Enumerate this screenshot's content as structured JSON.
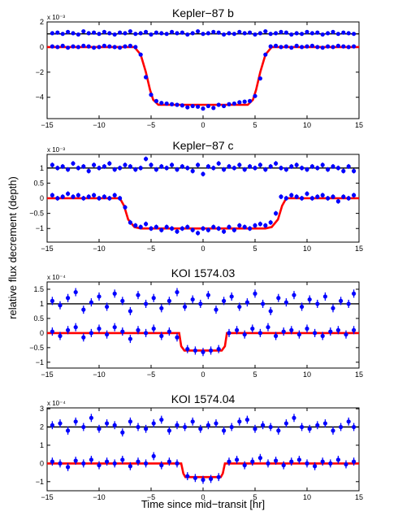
{
  "figure": {
    "ylabel": "relative flux decrement (depth)",
    "xlabel": "Time since mid−transit [hr]",
    "colors": {
      "model": "#ff0000",
      "reference": "#000000",
      "points": "#0000ff"
    }
  },
  "chart_data": [
    {
      "type": "scatter",
      "title": "Kepler−87 b",
      "multiplier": "x 10⁻³",
      "xlim": [
        -15,
        15
      ],
      "ylim": [
        -5.7,
        2
      ],
      "xticks": [
        -15,
        -10,
        -5,
        0,
        5,
        10,
        15
      ],
      "yticks": [
        -4,
        -2,
        0,
        2
      ],
      "yticklabels": [
        "−4",
        "−2",
        "0",
        "2"
      ],
      "error_bar": 0,
      "series": [
        {
          "role": "reference",
          "x": [
            -14.5,
            -14,
            -13.5,
            -13,
            -12.5,
            -12,
            -11.5,
            -11,
            -10.5,
            -10,
            -9.5,
            -9,
            -8.5,
            -8,
            -7.5,
            -7,
            -6.5,
            -6,
            -5.5,
            -5,
            -4.5,
            -4,
            -3.5,
            -3,
            -2.5,
            -2,
            -1.5,
            -1,
            -0.5,
            0,
            0.5,
            1,
            1.5,
            2,
            2.5,
            3,
            3.5,
            4,
            4.5,
            5,
            5.5,
            6,
            6.5,
            7,
            7.5,
            8,
            8.5,
            9,
            9.5,
            10,
            10.5,
            11,
            11.5,
            12,
            12.5,
            13,
            13.5,
            14,
            14.5
          ],
          "y": [
            1.1,
            1.15,
            1.05,
            1.2,
            1.1,
            1.0,
            1.25,
            1.1,
            1.15,
            1.05,
            1.2,
            1.1,
            1.0,
            1.15,
            1.1,
            1.25,
            1.05,
            1.1,
            1.2,
            1.0,
            1.15,
            1.1,
            1.05,
            1.2,
            1.1,
            1.15,
            1.0,
            1.1,
            1.25,
            1.05,
            1.1,
            1.2,
            1.15,
            1.0,
            1.1,
            1.05,
            1.2,
            1.1,
            1.15,
            1.0,
            1.1,
            1.25,
            1.05,
            1.1,
            1.2,
            1.15,
            1.0,
            1.1,
            1.05,
            1.2,
            1.1,
            1.15,
            1.0,
            1.1,
            1.2,
            1.05,
            1.15,
            1.1,
            1.05
          ]
        },
        {
          "role": "transit",
          "x": [
            -14.5,
            -14,
            -13.5,
            -13,
            -12.5,
            -12,
            -11.5,
            -11,
            -10.5,
            -10,
            -9.5,
            -9,
            -8.5,
            -8,
            -7.5,
            -7,
            -6.5,
            -6,
            -5.5,
            -5,
            -4.5,
            -4,
            -3.5,
            -3,
            -2.5,
            -2,
            -1.5,
            -1,
            -0.5,
            0,
            0.5,
            1,
            1.5,
            2,
            2.5,
            3,
            3.5,
            4,
            4.5,
            5,
            5.5,
            6,
            6.5,
            7,
            7.5,
            8,
            8.5,
            9,
            9.5,
            10,
            10.5,
            11,
            11.5,
            12,
            12.5,
            13,
            13.5,
            14,
            14.5
          ],
          "y": [
            0.05,
            0.0,
            0.1,
            -0.05,
            0.05,
            0.0,
            0.1,
            0.05,
            -0.05,
            0.0,
            0.1,
            0.05,
            0.0,
            -0.05,
            0.05,
            0.1,
            0.0,
            -0.6,
            -2.4,
            -3.8,
            -4.3,
            -4.45,
            -4.5,
            -4.55,
            -4.6,
            -4.65,
            -4.8,
            -4.7,
            -4.75,
            -4.9,
            -4.7,
            -4.85,
            -4.6,
            -4.7,
            -4.55,
            -4.5,
            -4.4,
            -4.35,
            -4.3,
            -3.9,
            -2.5,
            -0.6,
            0.05,
            0.1,
            0.0,
            0.05,
            -0.05,
            0.1,
            0.0,
            0.05,
            0.1,
            0.0,
            -0.05,
            0.05,
            0.0,
            0.1,
            0.05,
            0.0,
            0.05
          ]
        },
        {
          "role": "model-reference",
          "x": [
            -15,
            15
          ],
          "y": [
            1.05,
            1.05
          ]
        },
        {
          "role": "model",
          "x": [
            -15,
            -6.6,
            -6.0,
            -5.5,
            -5.1,
            -4.8,
            -4.3,
            4.3,
            4.8,
            5.1,
            5.5,
            6.0,
            6.6,
            15
          ],
          "y": [
            0,
            0,
            -0.6,
            -2.0,
            -3.4,
            -4.2,
            -4.6,
            -4.6,
            -4.2,
            -3.4,
            -2.0,
            -0.6,
            0,
            0
          ]
        }
      ]
    },
    {
      "type": "scatter",
      "title": "Kepler−87 c",
      "multiplier": "x 10⁻³",
      "xlim": [
        -15,
        15
      ],
      "ylim": [
        -1.45,
        1.45
      ],
      "xticks": [
        -15,
        -10,
        -5,
        0,
        5,
        10,
        15
      ],
      "yticks": [
        -1,
        -0.5,
        0,
        0.5,
        1
      ],
      "yticklabels": [
        "−1",
        "−0.5",
        "0",
        "0.5",
        "1"
      ],
      "error_bar": 0.08,
      "series": [
        {
          "role": "reference",
          "x": [
            -14.5,
            -14,
            -13.5,
            -13,
            -12.5,
            -12,
            -11.5,
            -11,
            -10.5,
            -10,
            -9.5,
            -9,
            -8.5,
            -8,
            -7.5,
            -7,
            -6.5,
            -6,
            -5.5,
            -5,
            -4.5,
            -4,
            -3.5,
            -3,
            -2.5,
            -2,
            -1.5,
            -1,
            -0.5,
            0,
            0.5,
            1,
            1.5,
            2,
            2.5,
            3,
            3.5,
            4,
            4.5,
            5,
            5.5,
            6,
            6.5,
            7,
            7.5,
            8,
            8.5,
            9,
            9.5,
            10,
            10.5,
            11,
            11.5,
            12,
            12.5,
            13,
            13.5,
            14,
            14.5
          ],
          "y": [
            1.1,
            1.0,
            1.05,
            0.95,
            1.15,
            1.0,
            1.05,
            0.9,
            1.1,
            1.0,
            1.05,
            1.15,
            0.95,
            1.0,
            1.1,
            1.05,
            0.95,
            1.0,
            1.3,
            1.1,
            0.95,
            1.05,
            1.0,
            1.1,
            0.95,
            1.05,
            1.0,
            0.9,
            1.1,
            0.8,
            1.05,
            1.0,
            1.15,
            0.95,
            1.05,
            1.0,
            1.1,
            0.95,
            1.05,
            1.0,
            1.1,
            0.95,
            1.05,
            1.15,
            1.0,
            0.95,
            1.05,
            1.1,
            1.0,
            0.95,
            1.05,
            1.0,
            1.1,
            0.95,
            1.05,
            1.0,
            0.9,
            1.05,
            0.9
          ]
        },
        {
          "role": "transit",
          "x": [
            -14.5,
            -14,
            -13.5,
            -13,
            -12.5,
            -12,
            -11.5,
            -11,
            -10.5,
            -10,
            -9.5,
            -9,
            -8.5,
            -8,
            -7.5,
            -7,
            -6.5,
            -6,
            -5.5,
            -5,
            -4.5,
            -4,
            -3.5,
            -3,
            -2.5,
            -2,
            -1.5,
            -1,
            -0.5,
            0,
            0.5,
            1,
            1.5,
            2,
            2.5,
            3,
            3.5,
            4,
            4.5,
            5,
            5.5,
            6,
            6.5,
            7,
            7.5,
            8,
            8.5,
            9,
            9.5,
            10,
            10.5,
            11,
            11.5,
            12,
            12.5,
            13,
            13.5,
            14,
            14.5
          ],
          "y": [
            0.1,
            0.0,
            0.05,
            0.15,
            0.05,
            0.1,
            0.0,
            0.05,
            0.1,
            0.0,
            0.05,
            0.0,
            0.1,
            0.0,
            -0.3,
            -0.8,
            -0.9,
            -0.95,
            -0.85,
            -1.0,
            -0.95,
            -1.05,
            -0.95,
            -1.0,
            -1.1,
            -1.0,
            -0.95,
            -1.05,
            -1.15,
            -1.0,
            -1.05,
            -0.95,
            -1.0,
            -1.1,
            -0.95,
            -1.05,
            -0.9,
            -0.95,
            -1.0,
            -0.9,
            -0.85,
            -0.9,
            -0.8,
            -0.5,
            0.05,
            0.0,
            0.1,
            0.05,
            0.0,
            0.15,
            0.0,
            0.05,
            0.1,
            0.0,
            0.05,
            -0.1,
            0.05,
            0.0,
            0.1
          ]
        },
        {
          "role": "model-reference",
          "x": [
            -15,
            15
          ],
          "y": [
            1.0,
            1.0
          ]
        },
        {
          "role": "model",
          "x": [
            -15,
            -8.0,
            -7.6,
            -7.2,
            -6.6,
            -6.0,
            6.0,
            6.6,
            7.2,
            7.6,
            8.0,
            15
          ],
          "y": [
            0,
            0,
            -0.25,
            -0.7,
            -0.95,
            -1.0,
            -1.0,
            -0.95,
            -0.7,
            -0.25,
            0,
            0
          ]
        }
      ]
    },
    {
      "type": "scatter",
      "title": "KOI 1574.03",
      "multiplier": "x 10⁻⁴",
      "xlim": [
        -15,
        15
      ],
      "ylim": [
        -1.2,
        1.75
      ],
      "xticks": [
        -15,
        -10,
        -5,
        0,
        5,
        10,
        15
      ],
      "yticks": [
        -1,
        -0.5,
        0,
        0.5,
        1,
        1.5
      ],
      "yticklabels": [
        "−1",
        "−0.5",
        "0",
        "0.5",
        "1",
        "1.5"
      ],
      "error_bar": 0.14,
      "series": [
        {
          "role": "reference",
          "x": [
            -14.5,
            -13.75,
            -13,
            -12.25,
            -11.5,
            -10.75,
            -10,
            -9.25,
            -8.5,
            -7.75,
            -7,
            -6.25,
            -5.5,
            -4.75,
            -4,
            -3.25,
            -2.5,
            -1.75,
            -1,
            -0.25,
            0.5,
            1.25,
            2,
            2.75,
            3.5,
            4.25,
            5,
            5.75,
            6.5,
            7.25,
            8,
            8.75,
            9.5,
            10.25,
            11,
            11.75,
            12.5,
            13.25,
            14,
            14.5
          ],
          "y": [
            1.1,
            0.95,
            1.2,
            1.4,
            0.8,
            1.05,
            1.25,
            0.9,
            1.35,
            1.1,
            0.75,
            1.3,
            1.0,
            1.2,
            0.85,
            1.1,
            1.4,
            0.9,
            1.15,
            1.0,
            1.3,
            0.8,
            1.1,
            1.25,
            0.9,
            1.05,
            1.35,
            1.0,
            0.75,
            1.2,
            1.05,
            1.3,
            0.9,
            1.15,
            1.0,
            1.25,
            0.85,
            1.1,
            1.0,
            1.35
          ]
        },
        {
          "role": "transit",
          "x": [
            -14.5,
            -13.75,
            -13,
            -12.25,
            -11.5,
            -10.75,
            -10,
            -9.25,
            -8.5,
            -7.75,
            -7,
            -6.25,
            -5.5,
            -4.75,
            -4,
            -3.25,
            -2.5,
            -1.5,
            -0.75,
            0,
            0.75,
            1.5,
            2.5,
            3.25,
            4,
            4.75,
            5.5,
            6.25,
            7,
            7.75,
            8.5,
            9.25,
            10,
            10.75,
            11.5,
            12.25,
            13,
            13.75,
            14.5
          ],
          "y": [
            0.05,
            -0.1,
            0.1,
            0.2,
            -0.15,
            0.0,
            0.15,
            -0.05,
            0.2,
            0.05,
            -0.2,
            0.1,
            0.0,
            0.15,
            -0.1,
            0.05,
            -0.15,
            -0.55,
            -0.6,
            -0.65,
            -0.6,
            -0.55,
            0.0,
            0.1,
            -0.05,
            0.15,
            0.0,
            0.2,
            -0.1,
            0.05,
            0.1,
            -0.05,
            0.15,
            0.0,
            -0.1,
            0.05,
            0.1,
            -0.05,
            0.1
          ]
        },
        {
          "role": "model-reference",
          "x": [
            -15,
            15
          ],
          "y": [
            1.0,
            1.0
          ]
        },
        {
          "role": "model",
          "x": [
            -15,
            -2.3,
            -2.1,
            -1.8,
            1.8,
            2.1,
            2.3,
            15
          ],
          "y": [
            0,
            0,
            -0.45,
            -0.6,
            -0.6,
            -0.45,
            0,
            0
          ]
        }
      ]
    },
    {
      "type": "scatter",
      "title": "KOI 1574.04",
      "multiplier": "x 10⁻⁴",
      "xlim": [
        -15,
        15
      ],
      "ylim": [
        -1.5,
        3.05
      ],
      "xticks": [
        -15,
        -10,
        -5,
        0,
        5,
        10,
        15
      ],
      "yticks": [
        -1,
        0,
        1,
        2,
        3
      ],
      "yticklabels": [
        "−1",
        "0",
        "1",
        "2",
        "3"
      ],
      "error_bar": 0.22,
      "series": [
        {
          "role": "reference",
          "x": [
            -14.5,
            -13.75,
            -13,
            -12.25,
            -11.5,
            -10.75,
            -10,
            -9.25,
            -8.5,
            -7.75,
            -7,
            -6.25,
            -5.5,
            -4.75,
            -4,
            -3.25,
            -2.5,
            -1.75,
            -1,
            -0.25,
            0.5,
            1.25,
            2,
            2.75,
            3.5,
            4.25,
            5,
            5.75,
            6.5,
            7.25,
            8,
            8.75,
            9.5,
            10.25,
            11,
            11.75,
            12.5,
            13.25,
            14,
            14.5
          ],
          "y": [
            2.1,
            2.2,
            1.8,
            2.3,
            2.0,
            2.5,
            1.9,
            2.2,
            2.1,
            1.7,
            2.3,
            2.0,
            1.9,
            2.2,
            2.4,
            1.8,
            2.1,
            2.0,
            2.3,
            1.9,
            2.1,
            2.2,
            1.8,
            2.0,
            2.3,
            2.4,
            1.9,
            2.1,
            2.0,
            1.8,
            2.2,
            2.5,
            2.0,
            1.9,
            2.1,
            2.2,
            1.8,
            2.0,
            2.3,
            2.0
          ]
        },
        {
          "role": "transit",
          "x": [
            -14.5,
            -13.75,
            -13,
            -12.25,
            -11.5,
            -10.75,
            -10,
            -9.25,
            -8.5,
            -7.75,
            -7,
            -6.25,
            -5.5,
            -4.75,
            -4,
            -3.25,
            -2.5,
            -1.5,
            -0.75,
            0,
            0.75,
            1.5,
            2.5,
            3.25,
            4,
            4.75,
            5.5,
            6.25,
            7,
            7.75,
            8.5,
            9.25,
            10,
            10.75,
            11.5,
            12.25,
            13,
            13.75,
            14.5
          ],
          "y": [
            0.1,
            0.0,
            -0.2,
            0.15,
            0.0,
            0.2,
            -0.1,
            0.1,
            0.0,
            0.2,
            -0.15,
            0.1,
            0.0,
            0.4,
            -0.1,
            0.1,
            0.0,
            -0.7,
            -0.8,
            -0.9,
            -0.85,
            -0.75,
            0.1,
            0.2,
            -0.1,
            0.1,
            0.3,
            0.0,
            0.15,
            -0.1,
            0.1,
            0.2,
            0.0,
            -0.15,
            0.1,
            0.0,
            0.2,
            -0.05,
            0.1
          ]
        },
        {
          "role": "model-reference",
          "x": [
            -15,
            15
          ],
          "y": [
            2.0,
            2.0
          ]
        },
        {
          "role": "model",
          "x": [
            -15,
            -2.1,
            -1.9,
            -1.7,
            1.7,
            1.9,
            2.1,
            15
          ],
          "y": [
            0,
            0,
            -0.55,
            -0.75,
            -0.75,
            -0.55,
            0,
            0
          ]
        }
      ]
    }
  ]
}
